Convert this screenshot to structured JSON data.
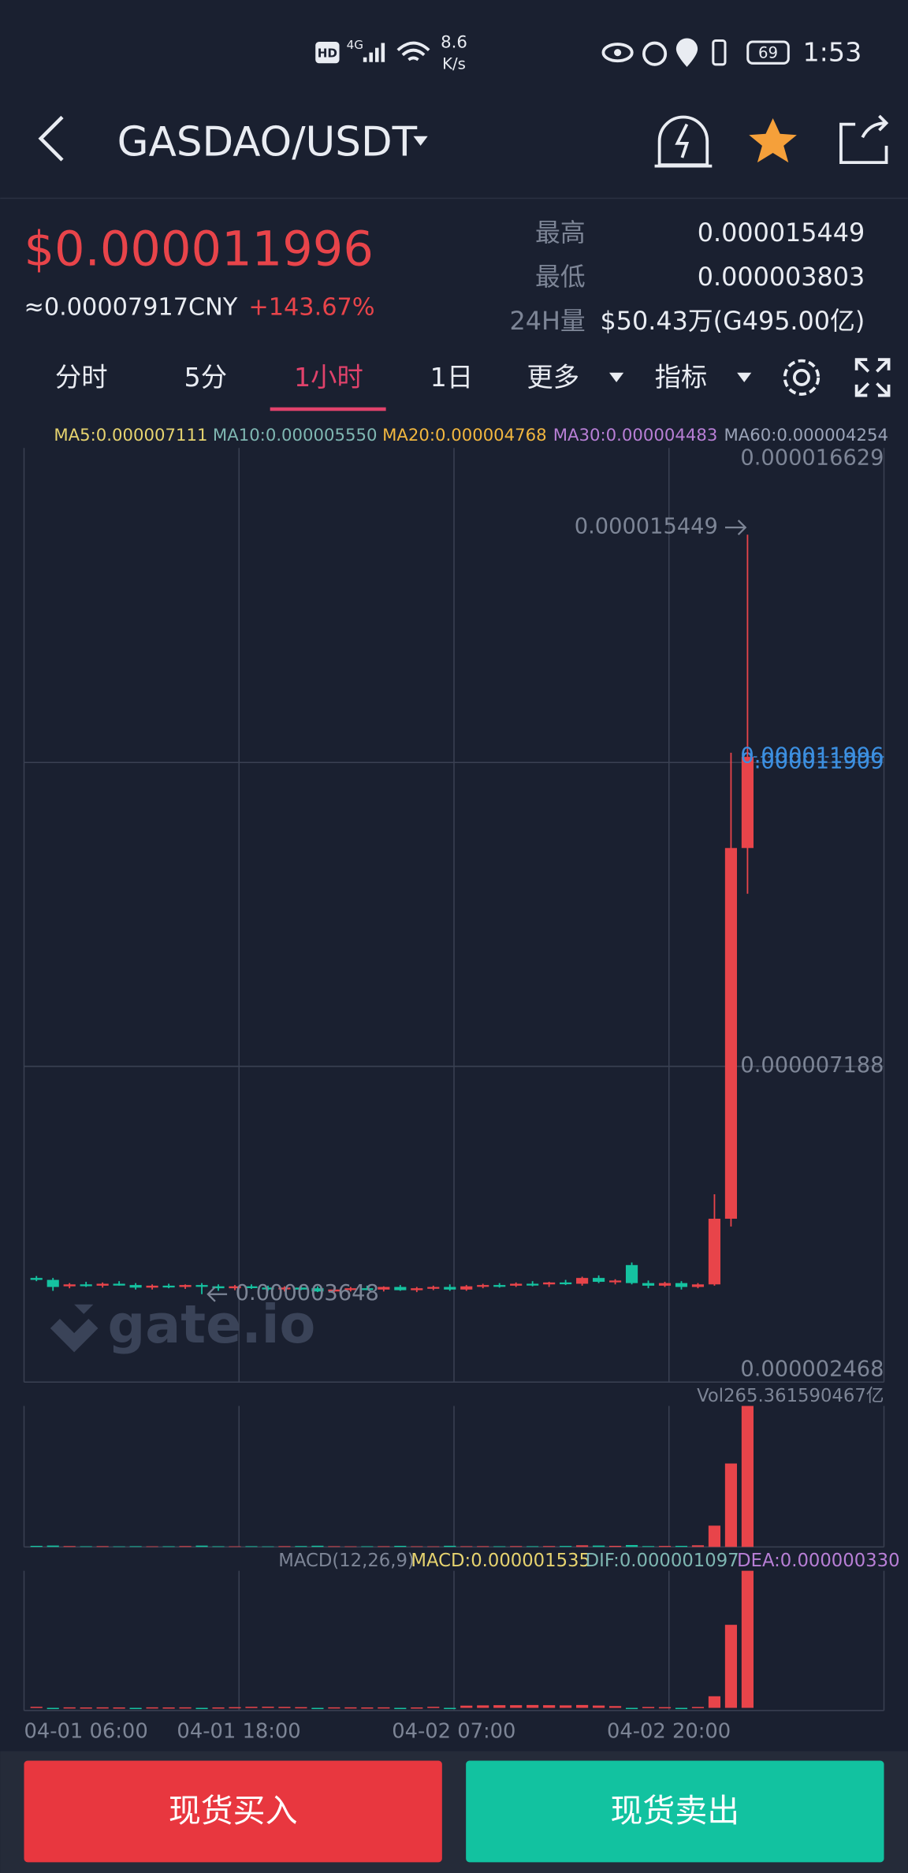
{
  "status_bar": {
    "hd": "HD",
    "network": "4G",
    "speed": "8.6",
    "speed_unit": "K/s",
    "battery": "69",
    "time": "1:53"
  },
  "header": {
    "pair": "GASDAO/USDT"
  },
  "ticker": {
    "price": "$0.000011996",
    "cny": "≈0.00007917CNY",
    "change": "+143.67%",
    "high_label": "最高",
    "high": "0.000015449",
    "low_label": "最低",
    "low": "0.000003803",
    "volume_label": "24H量",
    "volume": "$50.43万(G495.00亿)"
  },
  "tabs": [
    "分时",
    "5分",
    "1小时",
    "1日",
    "更多",
    "指标"
  ],
  "chart_data": {
    "type": "candlestick",
    "ma_legend": [
      "MA5:0.000007111",
      "MA10:0.000005550",
      "MA20:0.000004768",
      "MA30:0.000004483",
      "MA60:0.000004254"
    ],
    "ma_colors": [
      "#e6d36f",
      "#7fb7b2",
      "#f2b73f",
      "#b87fd6",
      "#9aa3b8"
    ],
    "ylim": [
      2.468e-06,
      1.6629e-05
    ],
    "yticks": [
      1.6629e-05,
      1.1909e-05,
      7.188e-06,
      2.468e-06
    ],
    "xticks": [
      {
        "value": 0,
        "label": "04-01 06:00"
      },
      {
        "value": 13,
        "label": "04-01 18:00"
      },
      {
        "value": 26,
        "label": "04-02 07:00"
      },
      {
        "value": 39,
        "label": "04-02 20:00"
      }
    ],
    "up_color": "#e8444a",
    "down_color": "#15c2a0",
    "candles": [
      [
        3.9e-06,
        3.93e-06,
        3.85e-06,
        3.87e-06
      ],
      [
        3.87e-06,
        3.9e-06,
        3.7e-06,
        3.76e-06
      ],
      [
        3.77e-06,
        3.82e-06,
        3.74e-06,
        3.8e-06
      ],
      [
        3.8e-06,
        3.84e-06,
        3.76e-06,
        3.78e-06
      ],
      [
        3.78e-06,
        3.83e-06,
        3.75e-06,
        3.81e-06
      ],
      [
        3.81e-06,
        3.85e-06,
        3.78e-06,
        3.79e-06
      ],
      [
        3.79e-06,
        3.82e-06,
        3.72e-06,
        3.75e-06
      ],
      [
        3.75e-06,
        3.8e-06,
        3.72e-06,
        3.78e-06
      ],
      [
        3.78e-06,
        3.81e-06,
        3.74e-06,
        3.76e-06
      ],
      [
        3.76e-06,
        3.8e-06,
        3.73e-06,
        3.79e-06
      ],
      [
        3.79e-06,
        3.82e-06,
        3.648e-06,
        3.77e-06
      ],
      [
        3.77e-06,
        3.8e-06,
        3.7e-06,
        3.74e-06
      ],
      [
        3.74e-06,
        3.79e-06,
        3.71e-06,
        3.77e-06
      ],
      [
        3.77e-06,
        3.8e-06,
        3.73e-06,
        3.75e-06
      ],
      [
        3.75e-06,
        3.78e-06,
        3.7e-06,
        3.73e-06
      ],
      [
        3.73e-06,
        3.77e-06,
        3.69e-06,
        3.75e-06
      ],
      [
        3.75e-06,
        3.78e-06,
        3.71e-06,
        3.72e-06
      ],
      [
        3.74e-06,
        3.77e-06,
        3.68e-06,
        3.69e-06
      ],
      [
        3.69e-06,
        3.74e-06,
        3.66e-06,
        3.72e-06
      ],
      [
        3.72e-06,
        3.76e-06,
        3.69e-06,
        3.74e-06
      ],
      [
        3.74e-06,
        3.78e-06,
        3.71e-06,
        3.72e-06
      ],
      [
        3.72e-06,
        3.77e-06,
        3.69e-06,
        3.76e-06
      ],
      [
        3.76e-06,
        3.79e-06,
        3.7e-06,
        3.71e-06
      ],
      [
        3.71e-06,
        3.76e-06,
        3.68e-06,
        3.74e-06
      ],
      [
        3.74e-06,
        3.78e-06,
        3.71e-06,
        3.76e-06
      ],
      [
        3.76e-06,
        3.8e-06,
        3.7e-06,
        3.72e-06
      ],
      [
        3.72e-06,
        3.79e-06,
        3.7e-06,
        3.77e-06
      ],
      [
        3.77e-06,
        3.81e-06,
        3.74e-06,
        3.79e-06
      ],
      [
        3.79e-06,
        3.82e-06,
        3.75e-06,
        3.78e-06
      ],
      [
        3.78e-06,
        3.83e-06,
        3.76e-06,
        3.81e-06
      ],
      [
        3.81e-06,
        3.85e-06,
        3.77e-06,
        3.8e-06
      ],
      [
        3.8e-06,
        3.84e-06,
        3.76e-06,
        3.83e-06
      ],
      [
        3.83e-06,
        3.87e-06,
        3.79e-06,
        3.81e-06
      ],
      [
        3.81e-06,
        3.92e-06,
        3.78e-06,
        3.9e-06
      ],
      [
        3.9e-06,
        3.94e-06,
        3.82e-06,
        3.84e-06
      ],
      [
        3.84e-06,
        3.88e-06,
        3.8e-06,
        3.86e-06
      ],
      [
        4.1e-06,
        4.14e-06,
        3.8e-06,
        3.82e-06
      ],
      [
        3.82e-06,
        3.86e-06,
        3.74e-06,
        3.78e-06
      ],
      [
        3.78e-06,
        3.84e-06,
        3.76e-06,
        3.82e-06
      ],
      [
        3.82e-06,
        3.85e-06,
        3.72e-06,
        3.76e-06
      ],
      [
        3.76e-06,
        3.82e-06,
        3.74e-06,
        3.8e-06
      ],
      [
        3.8e-06,
        5.2e-06,
        3.78e-06,
        4.82e-06
      ],
      [
        4.82e-06,
        1.206e-05,
        4.7e-06,
        1.058e-05
      ],
      [
        1.058e-05,
        1.5449e-05,
        9.87e-06,
        1.1996e-05
      ]
    ],
    "high_marker": 1.5449e-05,
    "low_marker": 3.648e-06,
    "last_price": 1.1996e-05,
    "volume": {
      "label": "Vol265.361590467亿",
      "ylim": [
        0,
        265.361590467
      ],
      "values": [
        2,
        2.5,
        1.5,
        1.2,
        1.4,
        1,
        1.3,
        1.1,
        1.2,
        1.5,
        2.4,
        1.2,
        1.1,
        1.3,
        1,
        1.4,
        1.6,
        2.2,
        1.3,
        1.1,
        1.2,
        1.3,
        2,
        1.2,
        1.1,
        2.1,
        1.3,
        1.4,
        1.2,
        1.5,
        1.3,
        1.6,
        1.8,
        3,
        2.5,
        2,
        3.5,
        1.5,
        1.8,
        2,
        3,
        40,
        157,
        265.361590467
      ]
    },
    "macd": {
      "labels": [
        "MACD(12,26,9)",
        "MACD:0.000001535",
        "DIF:0.000001097",
        "DEA:0.000000330"
      ],
      "ylim": [
        -3e-08,
        1.535e-06
      ],
      "values": [
        1.2e-08,
        -1e-08,
        6e-09,
        5e-09,
        6e-09,
        5e-09,
        -5e-09,
        6e-09,
        5e-09,
        6e-09,
        -6e-09,
        5e-09,
        8e-09,
        1.2e-08,
        1.3e-08,
        1.1e-08,
        8e-09,
        -8e-09,
        6e-09,
        6e-09,
        5e-09,
        6e-09,
        -6e-09,
        5e-09,
        1.2e-08,
        -6e-09,
        2.5e-08,
        2.8e-08,
        3e-08,
        3e-08,
        3.2e-08,
        3e-08,
        2.8e-08,
        3.2e-08,
        2.6e-08,
        2e-08,
        -1.2e-08,
        1e-08,
        8e-09,
        -6e-09,
        1e-08,
        1.3e-07,
        9.3e-07,
        1.535e-06
      ]
    }
  },
  "watermark": "gate.io",
  "buttons": {
    "buy": "现货买入",
    "sell": "现货卖出"
  }
}
